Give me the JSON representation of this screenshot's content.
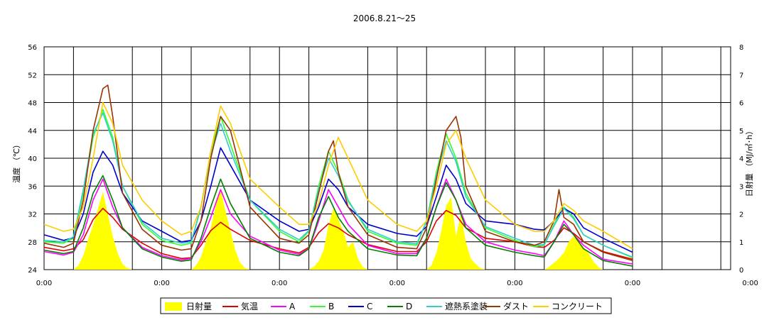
{
  "chart_data": {
    "type": "line",
    "title": "2006.8.21～25",
    "ylabel_left": "温度 （℃）",
    "ylabel_right": "日射量 （MJ/㎡･h）",
    "x_unit": "hours since first 0:00 tick",
    "x_ticks": [
      "0:00",
      "0:00",
      "0:00",
      "0:00",
      "0:00",
      "0:00",
      "0:00"
    ],
    "ylim_left": [
      24,
      56
    ],
    "yticks_left": [
      24,
      28,
      32,
      36,
      40,
      44,
      48,
      52,
      56
    ],
    "ylim_right": [
      0,
      8
    ],
    "yticks_right": [
      0,
      1,
      2,
      3,
      4,
      5,
      6,
      7,
      8
    ],
    "grid": true,
    "legend_position": "bottom",
    "colors": {
      "日射量": "#ffff00",
      "気温": "#e00000",
      "A": "#ff00ff",
      "B": "#33ff33",
      "C": "#0000cc",
      "D": "#008000",
      "遮熱系塗装": "#33cccc",
      "ダスト": "#993300",
      "コンクリート": "#ffcc00"
    },
    "solar": {
      "name": "日射量",
      "x": [
        0,
        6,
        7,
        8,
        9,
        10,
        11,
        12,
        13,
        14,
        15,
        16,
        17,
        18,
        24,
        30,
        31,
        32,
        33,
        34,
        35,
        36,
        37,
        38,
        39,
        40,
        41,
        42,
        48,
        54,
        55,
        56,
        57,
        58,
        59,
        60,
        61,
        62,
        63,
        64,
        65,
        66,
        72,
        78,
        79,
        80,
        81,
        82,
        83,
        84,
        85,
        86,
        87,
        88,
        89,
        90,
        96,
        102,
        103,
        104,
        105,
        106,
        107,
        108,
        109,
        110,
        111,
        112,
        113,
        114,
        120
      ],
      "values": [
        0,
        0,
        0.15,
        0.5,
        1.1,
        1.6,
        2.2,
        2.8,
        2.0,
        1.2,
        0.6,
        0.2,
        0.05,
        0,
        0,
        0,
        0.15,
        0.45,
        1.0,
        1.5,
        2.3,
        2.9,
        2.1,
        1.4,
        0.7,
        0.25,
        0.05,
        0,
        0,
        0,
        0.1,
        0.3,
        0.7,
        1.6,
        2.2,
        1.8,
        1.4,
        0.8,
        1.0,
        0.4,
        0.1,
        0,
        0,
        0,
        0.15,
        0.6,
        1.4,
        2.3,
        2.6,
        1.2,
        2.0,
        1.0,
        0.4,
        0.2,
        0.05,
        0,
        0,
        0,
        0.1,
        0.25,
        0.4,
        0.6,
        1.0,
        1.2,
        1.0,
        0.8,
        0.6,
        0.3,
        0.1,
        0,
        0
      ]
    },
    "series": [
      {
        "name": "気温",
        "x": [
          0,
          4,
          6,
          8,
          10,
          12,
          14,
          16,
          20,
          24,
          28,
          30,
          32,
          34,
          36,
          38,
          42,
          48,
          52,
          54,
          56,
          58,
          60,
          62,
          66,
          72,
          76,
          78,
          80,
          82,
          84,
          86,
          90,
          96,
          100,
          102,
          104,
          106,
          108,
          110,
          114,
          120
        ],
        "values": [
          27.2,
          26.7,
          27.0,
          28.3,
          31.2,
          32.8,
          31.5,
          29.8,
          27.8,
          26.3,
          25.6,
          25.7,
          27.5,
          29.6,
          30.8,
          29.8,
          28.2,
          27.0,
          26.4,
          27.2,
          29.3,
          30.6,
          30.0,
          29.0,
          27.6,
          26.6,
          26.6,
          28.0,
          31.0,
          32.5,
          31.8,
          30.0,
          28.5,
          28.0,
          27.3,
          27.2,
          28.2,
          30.0,
          29.2,
          28.0,
          26.6,
          25.5
        ]
      },
      {
        "name": "A",
        "x": [
          0,
          4,
          6,
          8,
          10,
          12,
          14,
          16,
          20,
          24,
          28,
          30,
          32,
          34,
          36,
          38,
          42,
          48,
          52,
          54,
          56,
          58,
          60,
          62,
          66,
          72,
          76,
          78,
          80,
          82,
          84,
          86,
          90,
          96,
          100,
          102,
          104,
          106,
          108,
          110,
          114,
          120
        ],
        "values": [
          26.6,
          26.1,
          26.5,
          29.0,
          34.0,
          37.0,
          33.0,
          30.0,
          27.2,
          26.0,
          25.4,
          25.6,
          28.0,
          31.5,
          35.5,
          32.0,
          28.8,
          26.8,
          26.2,
          27.0,
          31.0,
          35.5,
          33.0,
          30.5,
          27.5,
          26.3,
          26.3,
          28.5,
          33.0,
          37.0,
          34.0,
          30.5,
          28.0,
          26.8,
          26.3,
          26.0,
          28.0,
          31.0,
          29.0,
          27.5,
          25.5,
          24.8
        ]
      },
      {
        "name": "B",
        "x": [
          0,
          4,
          6,
          8,
          10,
          12,
          14,
          16,
          20,
          24,
          28,
          30,
          32,
          34,
          36,
          38,
          42,
          48,
          52,
          54,
          56,
          58,
          60,
          62,
          66,
          72,
          76,
          78,
          80,
          82,
          84,
          86,
          90,
          96,
          100,
          102,
          104,
          106,
          108,
          110,
          114,
          120
        ],
        "values": [
          28.0,
          27.8,
          28.5,
          35.0,
          43.0,
          47.0,
          43.0,
          36.0,
          30.5,
          28.2,
          27.5,
          27.8,
          33.0,
          41.0,
          46.0,
          42.0,
          34.0,
          29.5,
          28.0,
          29.5,
          36.0,
          41.0,
          38.0,
          34.0,
          29.5,
          27.8,
          27.5,
          31.0,
          38.0,
          43.5,
          40.0,
          35.0,
          30.0,
          28.2,
          27.3,
          27.5,
          30.5,
          33.0,
          31.5,
          29.0,
          27.5,
          25.7
        ]
      },
      {
        "name": "C",
        "x": [
          0,
          4,
          6,
          8,
          10,
          12,
          14,
          16,
          20,
          24,
          28,
          30,
          32,
          34,
          36,
          38,
          42,
          48,
          52,
          54,
          56,
          58,
          60,
          62,
          66,
          72,
          76,
          78,
          80,
          82,
          84,
          86,
          90,
          96,
          100,
          102,
          104,
          106,
          108,
          110,
          114,
          120
        ],
        "values": [
          29.0,
          28.2,
          28.6,
          32.0,
          38.0,
          41.0,
          39.0,
          35.0,
          31.0,
          29.5,
          28.0,
          28.2,
          31.0,
          36.0,
          41.5,
          39.0,
          34.0,
          31.0,
          29.5,
          29.8,
          33.0,
          37.0,
          35.5,
          33.0,
          30.5,
          29.2,
          28.8,
          30.2,
          34.5,
          39.0,
          37.0,
          33.5,
          31.0,
          30.5,
          29.8,
          29.7,
          31.0,
          32.8,
          32.0,
          30.0,
          28.5,
          26.5
        ]
      },
      {
        "name": "D",
        "x": [
          0,
          4,
          6,
          8,
          10,
          12,
          14,
          16,
          20,
          24,
          28,
          30,
          32,
          34,
          36,
          38,
          42,
          48,
          52,
          54,
          56,
          58,
          60,
          62,
          66,
          72,
          76,
          78,
          80,
          82,
          84,
          86,
          90,
          96,
          100,
          102,
          104,
          106,
          108,
          110,
          114,
          120
        ],
        "values": [
          26.8,
          26.3,
          26.6,
          30.0,
          35.0,
          37.5,
          34.0,
          30.0,
          27.0,
          25.8,
          25.2,
          25.4,
          28.5,
          33.0,
          37.0,
          33.5,
          28.5,
          26.5,
          26.0,
          27.0,
          31.5,
          34.5,
          31.5,
          29.5,
          27.0,
          26.1,
          26.0,
          28.5,
          33.0,
          36.5,
          34.0,
          30.0,
          27.5,
          26.5,
          26.0,
          25.8,
          28.0,
          30.5,
          29.0,
          27.0,
          25.3,
          24.5
        ]
      },
      {
        "name": "遮熱系塗装",
        "x": [
          0,
          4,
          6,
          8,
          10,
          12,
          14,
          16,
          20,
          24,
          28,
          30,
          32,
          34,
          36,
          38,
          42,
          48,
          52,
          54,
          56,
          58,
          60,
          62,
          66,
          72,
          76,
          78,
          80,
          82,
          84,
          86,
          90,
          96,
          100,
          102,
          104,
          106,
          108,
          110,
          114,
          120
        ],
        "values": [
          28.2,
          28.0,
          28.7,
          35.5,
          43.5,
          46.5,
          42.5,
          36.0,
          30.8,
          28.5,
          27.8,
          28.0,
          33.0,
          40.5,
          45.0,
          41.0,
          34.0,
          29.8,
          28.3,
          29.6,
          35.5,
          40.0,
          37.5,
          33.8,
          29.8,
          28.0,
          27.7,
          31.0,
          37.5,
          42.5,
          39.5,
          34.5,
          30.2,
          28.5,
          27.5,
          27.6,
          30.3,
          32.8,
          31.3,
          29.0,
          27.5,
          25.8
        ]
      },
      {
        "name": "ダスト",
        "x": [
          0,
          4,
          6,
          8,
          10,
          12,
          13,
          14,
          16,
          20,
          24,
          28,
          30,
          32,
          34,
          36,
          38,
          42,
          48,
          52,
          54,
          56,
          58,
          59,
          60,
          62,
          66,
          72,
          76,
          78,
          80,
          82,
          84,
          85,
          86,
          90,
          96,
          100,
          102,
          104,
          105,
          106,
          108,
          110,
          114,
          120
        ],
        "values": [
          27.8,
          27.2,
          27.8,
          34.0,
          44.0,
          50.0,
          50.5,
          46.0,
          35.0,
          29.8,
          27.5,
          26.8,
          27.0,
          31.0,
          40.0,
          46.0,
          44.0,
          33.0,
          28.5,
          27.8,
          29.0,
          35.0,
          41.0,
          42.5,
          38.0,
          33.0,
          29.0,
          27.2,
          27.0,
          30.0,
          37.0,
          44.0,
          46.0,
          43.0,
          36.0,
          29.5,
          28.0,
          27.5,
          28.0,
          31.0,
          35.5,
          31.5,
          30.5,
          28.0,
          26.5,
          25.3
        ]
      },
      {
        "name": "コンクリート",
        "x": [
          0,
          4,
          6,
          8,
          10,
          12,
          14,
          16,
          20,
          24,
          28,
          30,
          32,
          34,
          36,
          38,
          42,
          48,
          52,
          54,
          56,
          58,
          60,
          62,
          66,
          72,
          76,
          78,
          80,
          82,
          84,
          86,
          90,
          96,
          100,
          102,
          104,
          106,
          108,
          110,
          114,
          120
        ],
        "values": [
          30.5,
          29.5,
          29.8,
          33.0,
          40.0,
          48.0,
          45.0,
          39.0,
          34.0,
          31.0,
          29.0,
          29.5,
          33.0,
          41.0,
          47.5,
          45.0,
          37.0,
          33.0,
          30.5,
          30.5,
          33.5,
          39.0,
          43.0,
          40.0,
          34.0,
          30.5,
          29.5,
          31.0,
          36.0,
          42.0,
          44.0,
          40.0,
          34.0,
          30.5,
          29.5,
          29.5,
          31.0,
          33.5,
          32.5,
          31.0,
          29.5,
          27.0
        ]
      }
    ],
    "legend": [
      "日射量",
      "気温",
      "A",
      "B",
      "C",
      "D",
      "遮熱系塗装",
      "ダスト",
      "コンクリート"
    ]
  }
}
